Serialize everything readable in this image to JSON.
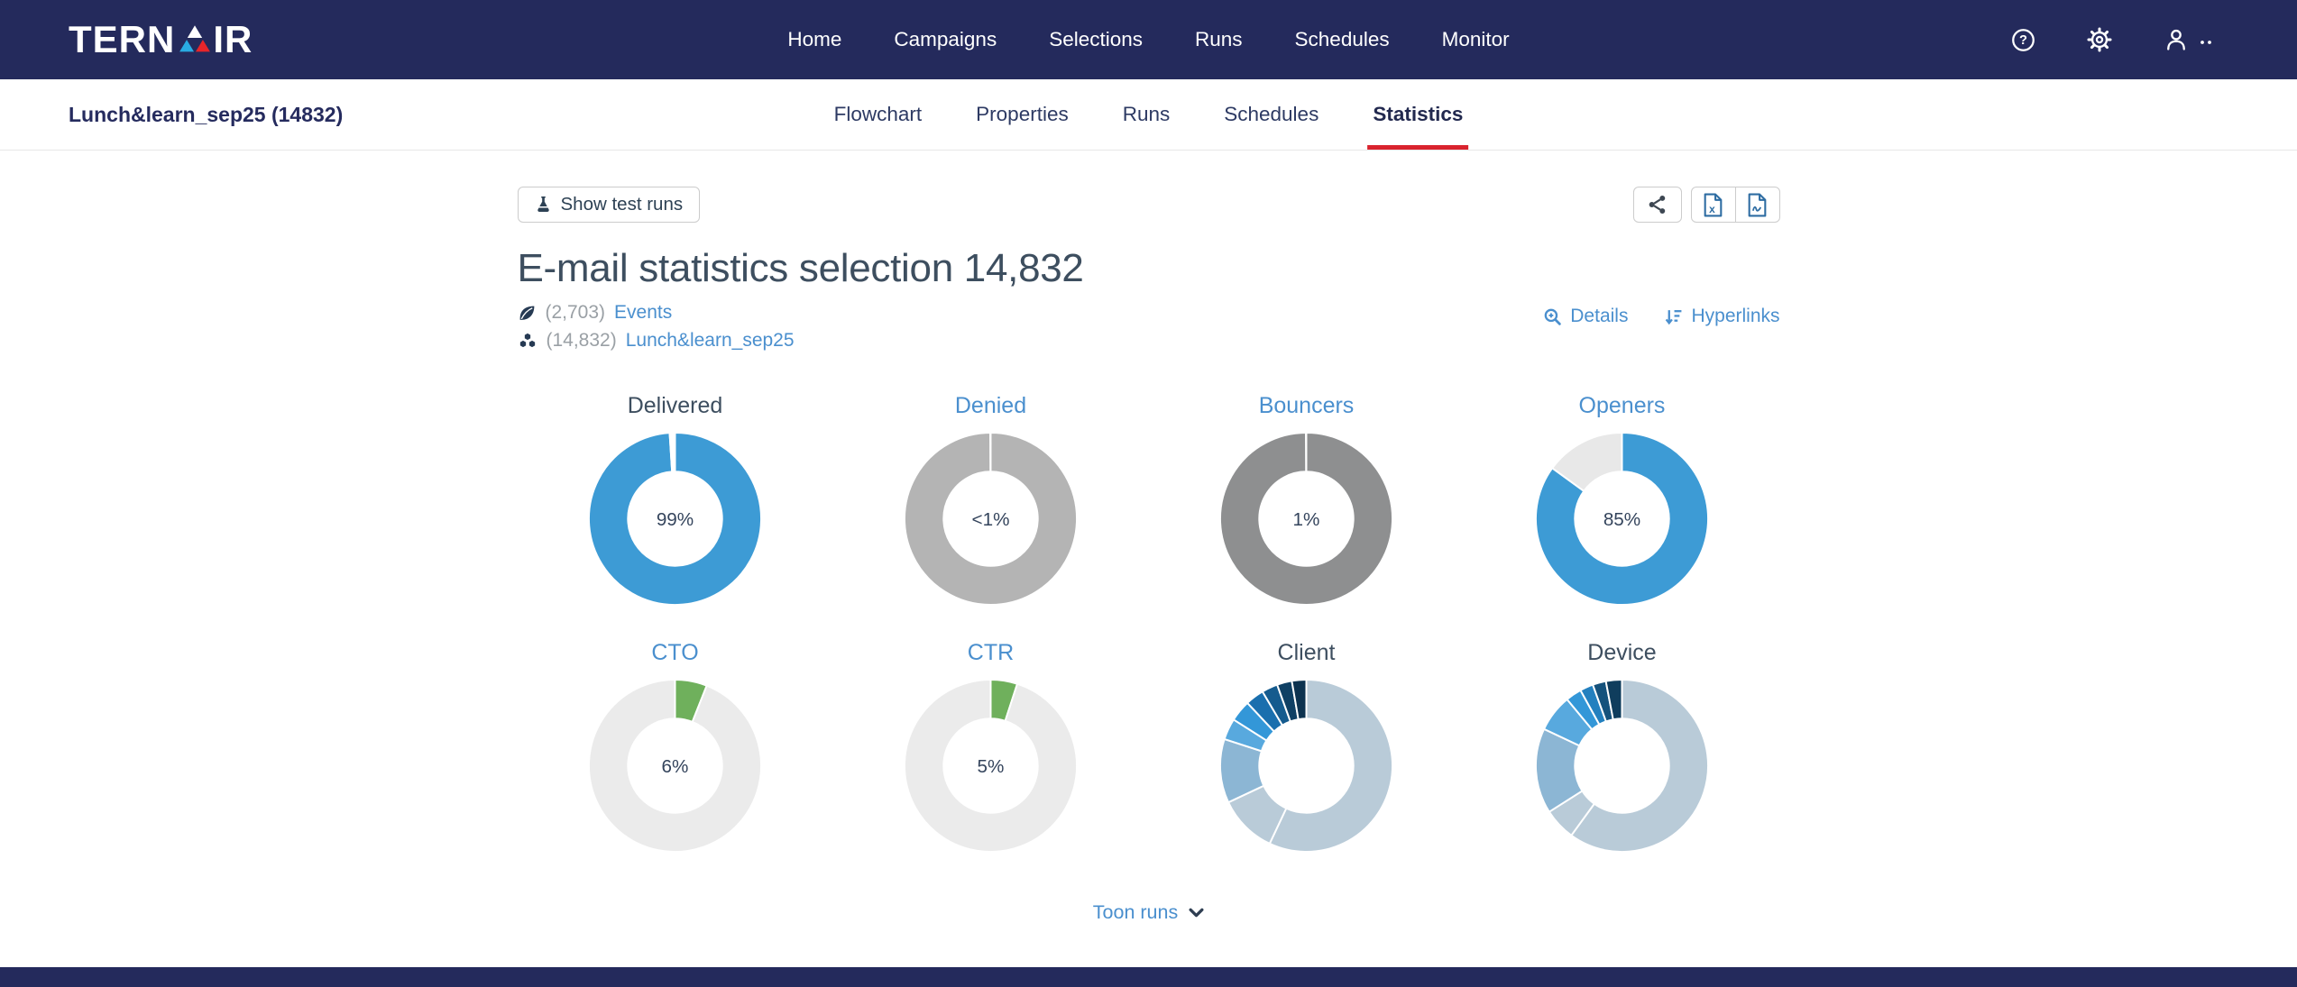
{
  "brand": {
    "text_left": "TERN",
    "text_right": "IR"
  },
  "nav": {
    "items": [
      "Home",
      "Campaigns",
      "Selections",
      "Runs",
      "Schedules",
      "Monitor"
    ]
  },
  "subheader": {
    "breadcrumb": "Lunch&learn_sep25 (14832)",
    "tabs": [
      {
        "label": "Flowchart"
      },
      {
        "label": "Properties"
      },
      {
        "label": "Runs"
      },
      {
        "label": "Schedules"
      },
      {
        "label": "Statistics"
      }
    ],
    "active_tab": "Statistics"
  },
  "toolbar": {
    "show_test_runs_label": "Show test runs"
  },
  "page": {
    "title": "E-mail statistics selection 14,832",
    "meta": [
      {
        "count": "(2,703)",
        "link": "Events"
      },
      {
        "count": "(14,832)",
        "link": "Lunch&learn_sep25"
      }
    ],
    "actions": [
      {
        "label": "Details"
      },
      {
        "label": "Hyperlinks"
      }
    ]
  },
  "runs_toggle": {
    "label": "Toon runs"
  },
  "colors": {
    "navbar": "#242a5c",
    "accent_red": "#d9232e",
    "link_blue": "#4a8fce",
    "donut_blue": "#3d9bd5",
    "donut_green": "#6fb05c",
    "logo_cyan": "#29abe2",
    "logo_red": "#e8252a"
  },
  "chart_data": [
    {
      "type": "donut",
      "title": "Delivered",
      "title_link": false,
      "center_label": "99%",
      "segments": [
        {
          "label": "Delivered",
          "value": 99,
          "color": "#3d9bd5"
        },
        {
          "label": "Remainder",
          "value": 1,
          "color": "#ffffff"
        }
      ]
    },
    {
      "type": "donut",
      "title": "Denied",
      "title_link": true,
      "center_label": "<1%",
      "segments": [
        {
          "label": "Denied ring",
          "value": 100,
          "color": "#b4b4b4"
        }
      ]
    },
    {
      "type": "donut",
      "title": "Bouncers",
      "title_link": true,
      "center_label": "1%",
      "segments": [
        {
          "label": "Bouncers ring",
          "value": 100,
          "color": "#8e8f90"
        }
      ]
    },
    {
      "type": "donut",
      "title": "Openers",
      "title_link": true,
      "center_label": "85%",
      "segments": [
        {
          "label": "Openers",
          "value": 85,
          "color": "#3d9bd5"
        },
        {
          "label": "Remainder",
          "value": 15,
          "color": "#e8e8e8"
        }
      ]
    },
    {
      "type": "donut",
      "title": "CTO",
      "title_link": true,
      "center_label": "6%",
      "segments": [
        {
          "label": "CTO",
          "value": 6,
          "color": "#6fb05c"
        },
        {
          "label": "Remainder",
          "value": 94,
          "color": "#ebebeb"
        }
      ]
    },
    {
      "type": "donut",
      "title": "CTR",
      "title_link": true,
      "center_label": "5%",
      "segments": [
        {
          "label": "CTR",
          "value": 5,
          "color": "#6fb05c"
        },
        {
          "label": "Remainder",
          "value": 95,
          "color": "#ebebeb"
        }
      ]
    },
    {
      "type": "donut",
      "title": "Client",
      "title_link": false,
      "center_label": "",
      "segments": [
        {
          "label": "client-1",
          "value": 57,
          "color": "#b9cbd8"
        },
        {
          "label": "client-2",
          "value": 11,
          "color": "#b9cbd8"
        },
        {
          "label": "client-3",
          "value": 12,
          "color": "#8cb6d4"
        },
        {
          "label": "client-4",
          "value": 4,
          "color": "#58a9de"
        },
        {
          "label": "client-5",
          "value": 4,
          "color": "#3397d8"
        },
        {
          "label": "client-6",
          "value": 3.5,
          "color": "#1a6fae"
        },
        {
          "label": "client-7",
          "value": 3,
          "color": "#155b8e"
        },
        {
          "label": "client-8",
          "value": 2.8,
          "color": "#0f4064"
        },
        {
          "label": "client-9",
          "value": 2.7,
          "color": "#0d3350"
        }
      ]
    },
    {
      "type": "donut",
      "title": "Device",
      "title_link": false,
      "center_label": "",
      "segments": [
        {
          "label": "device-1",
          "value": 60,
          "color": "#b9cbd8"
        },
        {
          "label": "device-2",
          "value": 6,
          "color": "#b9cbd8"
        },
        {
          "label": "device-3",
          "value": 16,
          "color": "#8cb6d4"
        },
        {
          "label": "device-4",
          "value": 7,
          "color": "#58a9de"
        },
        {
          "label": "device-5",
          "value": 3,
          "color": "#3397d8"
        },
        {
          "label": "device-6",
          "value": 2.5,
          "color": "#2380bf"
        },
        {
          "label": "device-7",
          "value": 2.5,
          "color": "#15527c"
        },
        {
          "label": "device-8",
          "value": 3,
          "color": "#0f3d5d"
        }
      ]
    }
  ]
}
